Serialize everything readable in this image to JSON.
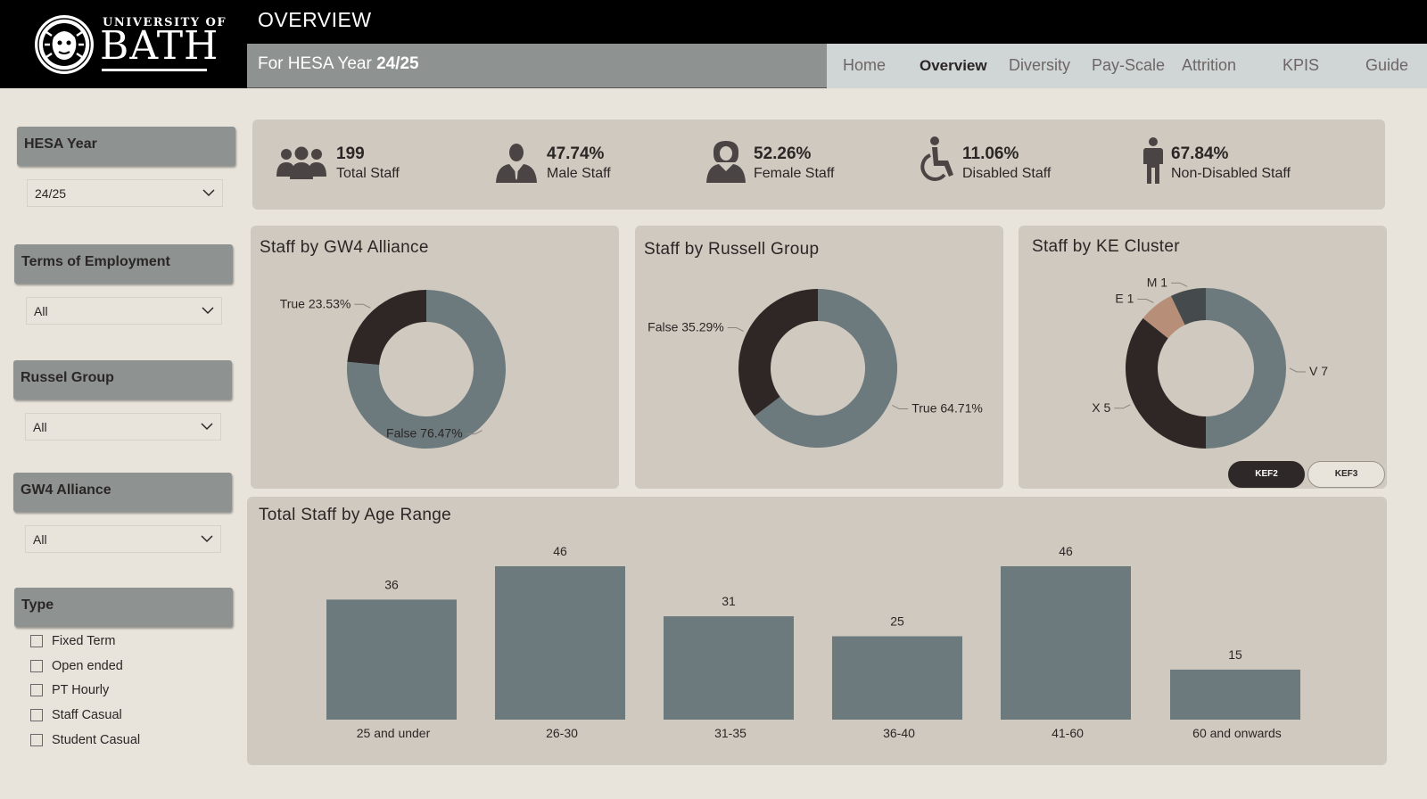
{
  "header": {
    "logo_small": "UNIVERSITY OF",
    "logo_big": "BATH",
    "page_title": "OVERVIEW",
    "year_prefix": "For HESA Year",
    "year_value": "24/25"
  },
  "nav": [
    {
      "label": "Home",
      "active": false
    },
    {
      "label": "Overview",
      "active": true
    },
    {
      "label": "Diversity",
      "active": false
    },
    {
      "label": "Pay-Scale",
      "active": false
    },
    {
      "label": "Attrition",
      "active": false
    },
    {
      "label": "KPIS",
      "active": false
    },
    {
      "label": "Guide",
      "active": false
    }
  ],
  "filters": {
    "hesa_year": {
      "title": "HESA Year",
      "value": "24/25"
    },
    "terms": {
      "title": "Terms of Employment",
      "value": "All"
    },
    "russel": {
      "title": "Russel Group",
      "value": "All"
    },
    "gw4": {
      "title": "GW4 Alliance",
      "value": "All"
    },
    "type": {
      "title": "Type",
      "options": [
        "Fixed Term",
        "Open ended",
        "PT Hourly",
        "Staff Casual",
        "Student Casual"
      ]
    }
  },
  "kpis": [
    {
      "value": "199",
      "label": "Total Staff",
      "icon": "group-icon"
    },
    {
      "value": "47.74%",
      "label": "Male Staff",
      "icon": "male-icon"
    },
    {
      "value": "52.26%",
      "label": "Female Staff",
      "icon": "female-icon"
    },
    {
      "value": "11.06%",
      "label": "Disabled Staff",
      "icon": "wheelchair-icon"
    },
    {
      "value": "67.84%",
      "label": "Non-Disabled Staff",
      "icon": "person-standing-icon"
    }
  ],
  "colors": {
    "slate": "#6c797d",
    "dark": "#2f2626",
    "tan": "#b78f79",
    "charcoal": "#454b4c"
  },
  "chart_data": [
    {
      "type": "pie",
      "title": "Staff by GW4 Alliance",
      "slices": [
        {
          "name": "False",
          "value": 76.47,
          "label": "False 76.47%"
        },
        {
          "name": "True",
          "value": 23.53,
          "label": "True 23.53%"
        }
      ]
    },
    {
      "type": "pie",
      "title": "Staff by Russell Group",
      "slices": [
        {
          "name": "True",
          "value": 64.71,
          "label": "True 64.71%"
        },
        {
          "name": "False",
          "value": 35.29,
          "label": "False 35.29%"
        }
      ]
    },
    {
      "type": "pie",
      "title": "Staff by KE Cluster",
      "slices": [
        {
          "name": "V",
          "value": 7,
          "label": "V 7"
        },
        {
          "name": "X",
          "value": 5,
          "label": "X 5"
        },
        {
          "name": "E",
          "value": 1,
          "label": "E 1"
        },
        {
          "name": "M",
          "value": 1,
          "label": "M 1"
        }
      ],
      "toggles": [
        {
          "label": "KEF2",
          "active": true
        },
        {
          "label": "KEF3",
          "active": false
        }
      ]
    },
    {
      "type": "bar",
      "title": "Total Staff by Age Range",
      "categories": [
        "25 and under",
        "26-30",
        "31-35",
        "36-40",
        "41-60",
        "60 and onwards"
      ],
      "values": [
        36,
        46,
        31,
        25,
        46,
        15
      ],
      "ylim": [
        0,
        46
      ]
    }
  ]
}
